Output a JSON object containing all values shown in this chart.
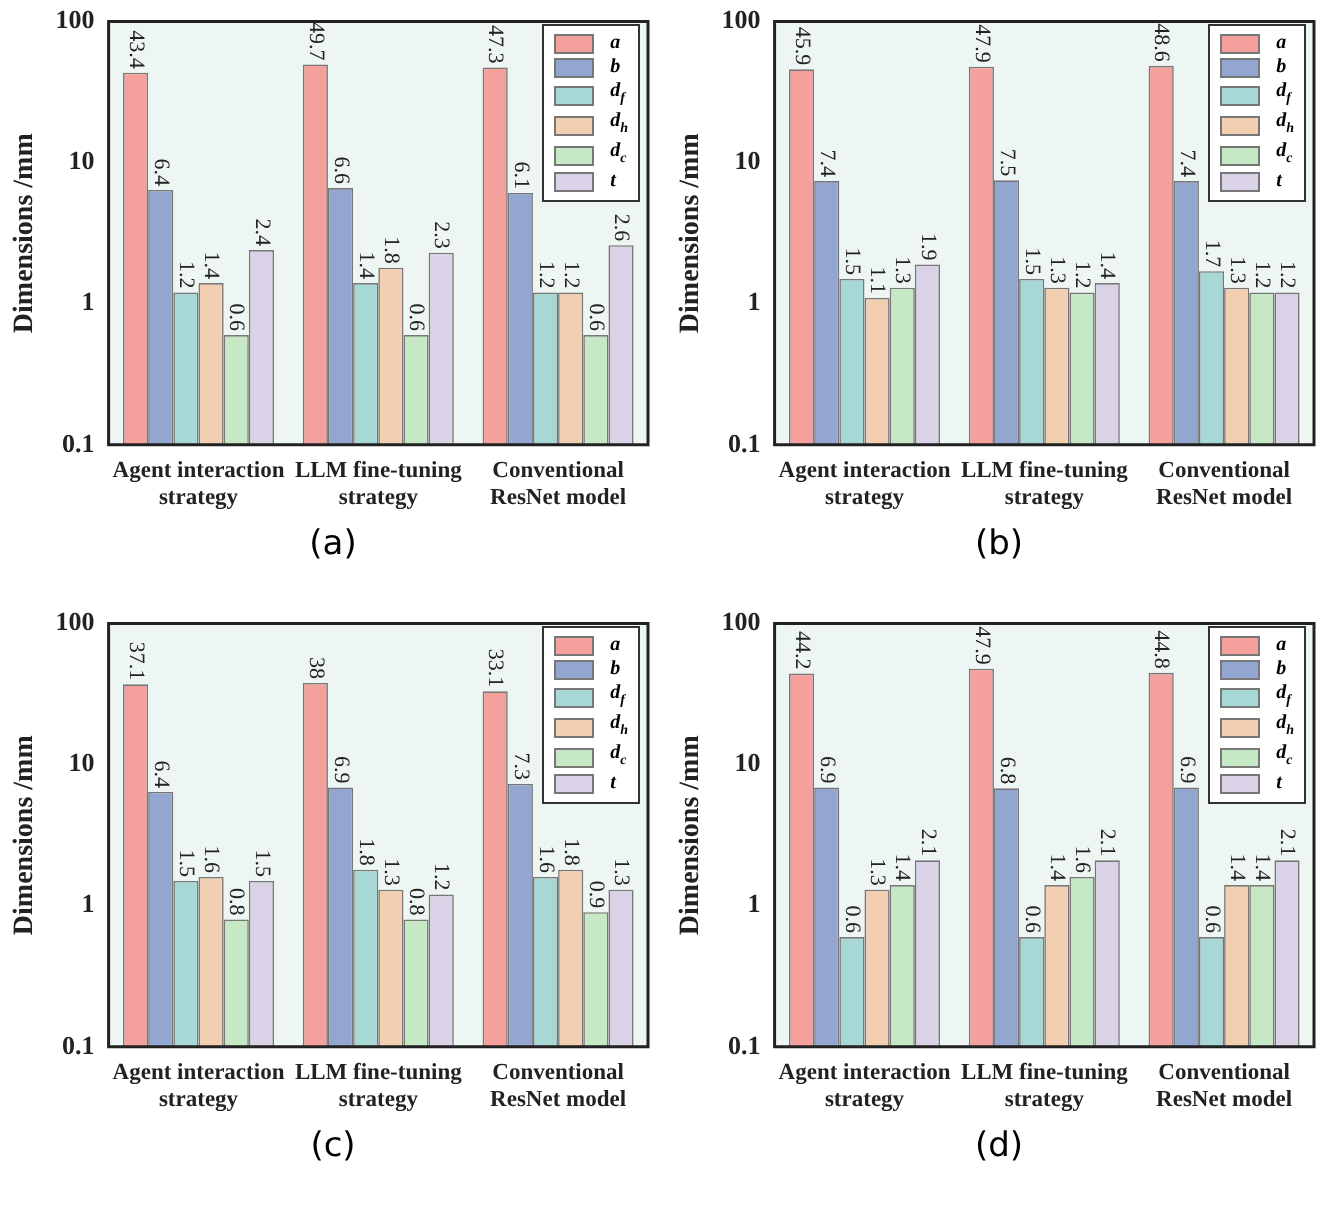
{
  "chart_data": [
    {
      "type": "bar",
      "title": "(a)",
      "ylabel": "Dimensions /mm",
      "categories": [
        "Agent interaction\nstrategy",
        "LLM fine-tuning\nstrategy",
        "Conventional\nResNet model"
      ],
      "log": true,
      "ylim": [
        0.1,
        100
      ],
      "yticks": [
        0.1,
        1,
        10,
        100
      ],
      "legend": "top right",
      "data_labels": true,
      "grid": false,
      "series": [
        {
          "name": "a",
          "color": "#f4a19d",
          "values": [
            43.4,
            49.7,
            47.3
          ]
        },
        {
          "name": "b",
          "color": "#93a6d0",
          "values": [
            6.4,
            6.6,
            6.1
          ]
        },
        {
          "name": "d$_{f}$",
          "color": "#a8d8d5",
          "values": [
            1.2,
            1.4,
            1.2
          ]
        },
        {
          "name": "d$_{h}$",
          "color": "#f3cfb1",
          "values": [
            1.4,
            1.8,
            1.2
          ]
        },
        {
          "name": "d$_{c}$",
          "color": "#c6e8c4",
          "values": [
            0.6,
            0.6,
            0.6
          ]
        },
        {
          "name": "t",
          "color": "#dad3e7",
          "values": [
            2.4,
            2.3,
            2.6
          ]
        }
      ]
    },
    {
      "type": "bar",
      "title": "(b)",
      "ylabel": "Dimensions /mm",
      "categories": [
        "Agent interaction\nstrategy",
        "LLM fine-tuning\nstrategy",
        "Conventional\nResNet model"
      ],
      "log": true,
      "ylim": [
        0.1,
        100
      ],
      "yticks": [
        0.1,
        1,
        10,
        100
      ],
      "legend": "top right",
      "data_labels": true,
      "grid": false,
      "series": [
        {
          "name": "a",
          "color": "#f4a19d",
          "values": [
            45.9,
            47.9,
            48.6
          ]
        },
        {
          "name": "b",
          "color": "#93a6d0",
          "values": [
            7.4,
            7.5,
            7.4
          ]
        },
        {
          "name": "d$_{f}$",
          "color": "#a8d8d5",
          "values": [
            1.5,
            1.5,
            1.7
          ]
        },
        {
          "name": "d$_{h}$",
          "color": "#f3cfb1",
          "values": [
            1.1,
            1.3,
            1.3
          ]
        },
        {
          "name": "d$_{c}$",
          "color": "#c6e8c4",
          "values": [
            1.3,
            1.2,
            1.2
          ]
        },
        {
          "name": "t",
          "color": "#dad3e7",
          "values": [
            1.9,
            1.4,
            1.2
          ]
        }
      ]
    },
    {
      "type": "bar",
      "title": "(c)",
      "ylabel": "Dimensions /mm",
      "categories": [
        "Agent interaction\nstrategy",
        "LLM fine-tuning\nstrategy",
        "Conventional\nResNet model"
      ],
      "log": true,
      "ylim": [
        0.1,
        100
      ],
      "yticks": [
        0.1,
        1,
        10,
        100
      ],
      "legend": "top right",
      "data_labels": true,
      "grid": false,
      "series": [
        {
          "name": "a",
          "color": "#f4a19d",
          "values": [
            37.1,
            38,
            33.1
          ]
        },
        {
          "name": "b",
          "color": "#93a6d0",
          "values": [
            6.4,
            6.9,
            7.3
          ]
        },
        {
          "name": "d$_{f}$",
          "color": "#a8d8d5",
          "values": [
            1.5,
            1.8,
            1.6
          ]
        },
        {
          "name": "d$_{h}$",
          "color": "#f3cfb1",
          "values": [
            1.6,
            1.3,
            1.8
          ]
        },
        {
          "name": "d$_{c}$",
          "color": "#c6e8c4",
          "values": [
            0.8,
            0.8,
            0.9
          ]
        },
        {
          "name": "t",
          "color": "#dad3e7",
          "values": [
            1.5,
            1.2,
            1.3
          ]
        }
      ]
    },
    {
      "type": "bar",
      "title": "(d)",
      "ylabel": "Dimensions /mm",
      "categories": [
        "Agent interaction\nstrategy",
        "LLM fine-tuning\nstrategy",
        "Conventional\nResNet model"
      ],
      "log": true,
      "ylim": [
        0.1,
        100
      ],
      "yticks": [
        0.1,
        1,
        10,
        100
      ],
      "legend": "top right",
      "data_labels": true,
      "grid": false,
      "series": [
        {
          "name": "a",
          "color": "#f4a19d",
          "values": [
            44.2,
            47.9,
            44.8
          ]
        },
        {
          "name": "b",
          "color": "#93a6d0",
          "values": [
            6.9,
            6.8,
            6.9
          ]
        },
        {
          "name": "d$_{f}$",
          "color": "#a8d8d5",
          "values": [
            0.6,
            0.6,
            0.6
          ]
        },
        {
          "name": "d$_{h}$",
          "color": "#f3cfb1",
          "values": [
            1.3,
            1.4,
            1.4
          ]
        },
        {
          "name": "d$_{c}$",
          "color": "#c6e8c4",
          "values": [
            1.4,
            1.6,
            1.4
          ]
        },
        {
          "name": "t",
          "color": "#dad3e7",
          "values": [
            2.1,
            2.1,
            2.1
          ]
        }
      ]
    }
  ]
}
